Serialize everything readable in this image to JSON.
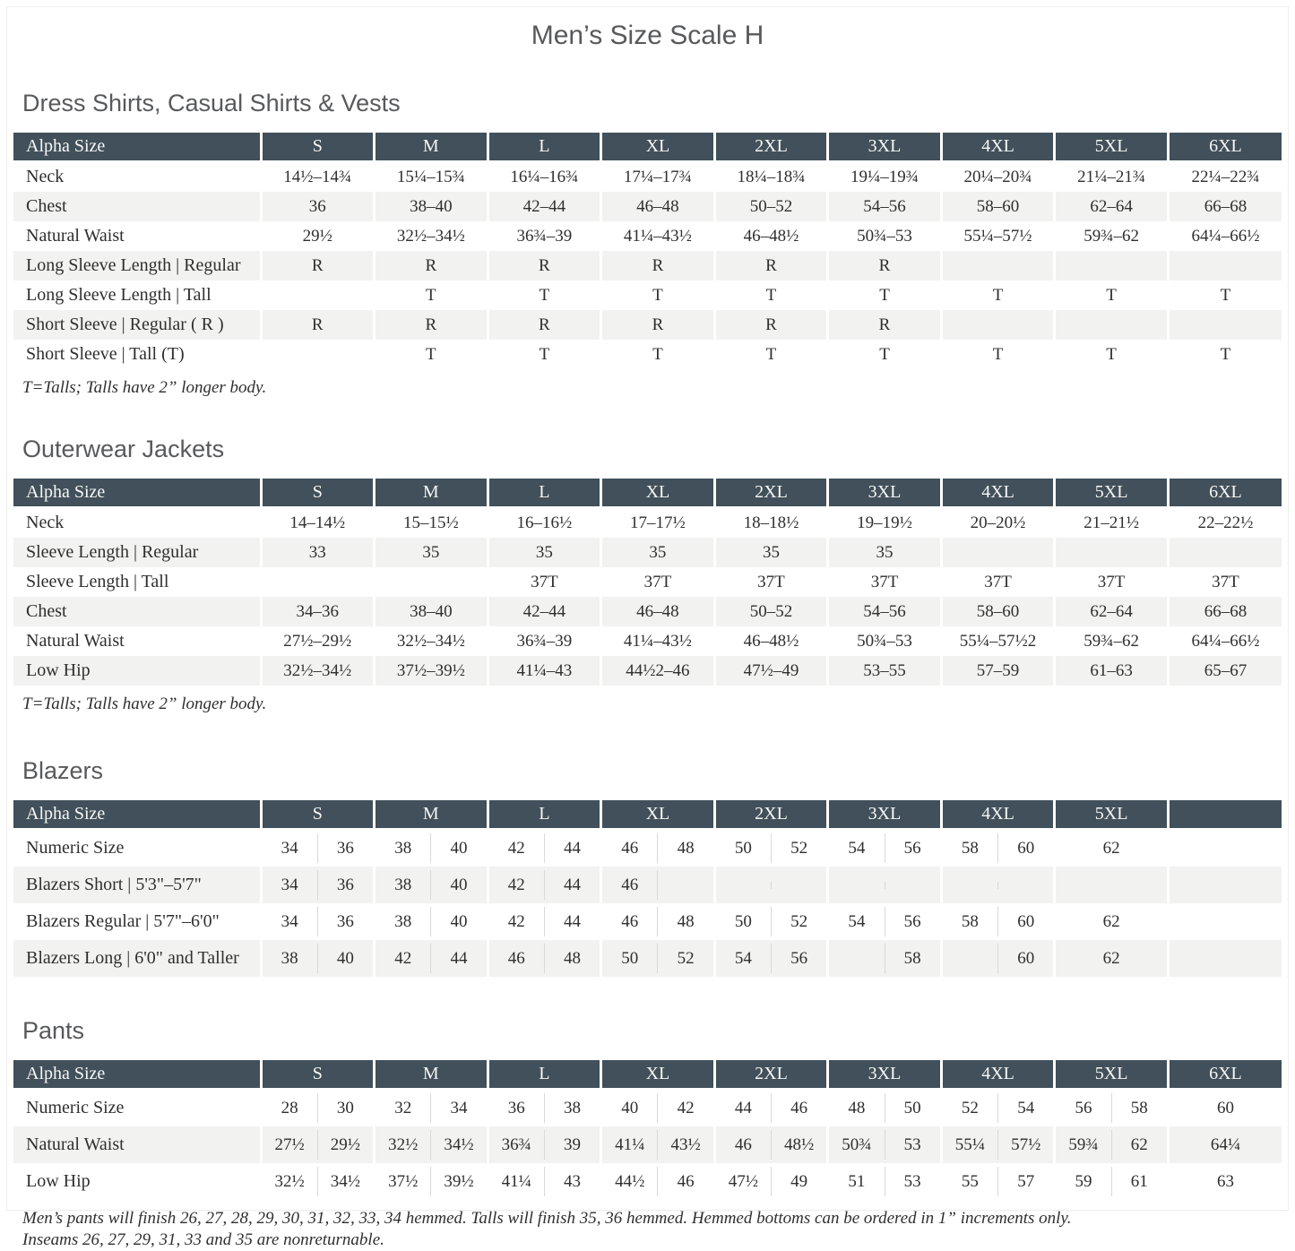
{
  "title": "Men’s Size Scale H",
  "colors": {
    "header_bg": "#41505a",
    "header_text": "#f7f7f5",
    "stripe": "#f2f2f0",
    "body_text": "#2f2f2f",
    "heading_text": "#58595b",
    "divider": "#d9d9d7"
  },
  "sections": [
    {
      "heading": "Dress Shirts, Casual Shirts & Vests",
      "footnotes": [
        "T=Talls; Talls have 2” longer body."
      ],
      "table": {
        "split": false,
        "columns": [
          "Alpha Size",
          "S",
          "M",
          "L",
          "XL",
          "2XL",
          "3XL",
          "4XL",
          "5XL",
          "6XL"
        ],
        "rows": [
          {
            "label": "Neck",
            "cells": [
              "14½–14¾",
              "15¼–15¾",
              "16¼–16¾",
              "17¼–17¾",
              "18¼–18¾",
              "19¼–19¾",
              "20¼–20¾",
              "21¼–21¾",
              "22¼–22¾"
            ]
          },
          {
            "label": "Chest",
            "cells": [
              "36",
              "38–40",
              "42–44",
              "46–48",
              "50–52",
              "54–56",
              "58–60",
              "62–64",
              "66–68"
            ]
          },
          {
            "label": "Natural Waist",
            "cells": [
              "29½",
              "32½–34½",
              "36¾–39",
              "41¼–43½",
              "46–48½",
              "50¾–53",
              "55¼–57½",
              "59¾–62",
              "64¼–66½"
            ]
          },
          {
            "label": "Long Sleeve Length  |  Regular",
            "cells": [
              "R",
              "R",
              "R",
              "R",
              "R",
              "R",
              "",
              "",
              ""
            ]
          },
          {
            "label": "Long Sleeve Length  |  Tall",
            "cells": [
              "",
              "T",
              "T",
              "T",
              "T",
              "T",
              "T",
              "T",
              "T"
            ]
          },
          {
            "label": "Short Sleeve  |  Regular ( R )",
            "cells": [
              "R",
              "R",
              "R",
              "R",
              "R",
              "R",
              "",
              "",
              ""
            ]
          },
          {
            "label": "Short Sleeve  |  Tall (T)",
            "cells": [
              "",
              "T",
              "T",
              "T",
              "T",
              "T",
              "T",
              "T",
              "T"
            ]
          }
        ]
      }
    },
    {
      "heading": "Outerwear Jackets",
      "footnotes": [
        "T=Talls; Talls have 2” longer body."
      ],
      "table": {
        "split": false,
        "columns": [
          "Alpha Size",
          "S",
          "M",
          "L",
          "XL",
          "2XL",
          "3XL",
          "4XL",
          "5XL",
          "6XL"
        ],
        "rows": [
          {
            "label": "Neck",
            "cells": [
              "14–14½",
              "15–15½",
              "16–16½",
              "17–17½",
              "18–18½",
              "19–19½",
              "20–20½",
              "21–21½",
              "22–22½"
            ]
          },
          {
            "label": "Sleeve Length  |  Regular",
            "cells": [
              "33",
              "35",
              "35",
              "35",
              "35",
              "35",
              "",
              "",
              ""
            ]
          },
          {
            "label": "Sleeve Length  |  Tall",
            "cells": [
              "",
              "",
              "37T",
              "37T",
              "37T",
              "37T",
              "37T",
              "37T",
              "37T"
            ]
          },
          {
            "label": "Chest",
            "cells": [
              "34–36",
              "38–40",
              "42–44",
              "46–48",
              "50–52",
              "54–56",
              "58–60",
              "62–64",
              "66–68"
            ]
          },
          {
            "label": "Natural Waist",
            "cells": [
              "27½–29½",
              "32½–34½",
              "36¾–39",
              "41¼–43½",
              "46–48½",
              "50¾–53",
              "55¼–57½2",
              "59¾–62",
              "64¼–66½"
            ]
          },
          {
            "label": "Low Hip",
            "cells": [
              "32½–34½",
              "37½–39½",
              "41¼–43",
              "44½2–46",
              "47½–49",
              "53–55",
              "57–59",
              "61–63",
              "65–67"
            ]
          }
        ]
      }
    },
    {
      "heading": "Blazers",
      "footnotes": [],
      "table": {
        "split": true,
        "columns": [
          "Alpha Size",
          "S",
          "M",
          "L",
          "XL",
          "2XL",
          "3XL",
          "4XL",
          "5XL",
          ""
        ],
        "rows": [
          {
            "label": "Numeric Size",
            "cells": [
              [
                "34",
                "36"
              ],
              [
                "38",
                "40"
              ],
              [
                "42",
                "44"
              ],
              [
                "46",
                "48"
              ],
              [
                "50",
                "52"
              ],
              [
                "54",
                "56"
              ],
              [
                "58",
                "60"
              ],
              [
                "62"
              ],
              null
            ]
          },
          {
            "label": "Blazers Short  |  5'3\"–5'7\"",
            "cells": [
              [
                "34",
                "36"
              ],
              [
                "38",
                "40"
              ],
              [
                "42",
                "44"
              ],
              [
                "46",
                ""
              ],
              null,
              null,
              null,
              null,
              null
            ]
          },
          {
            "label": "Blazers Regular  |  5'7\"–6'0\"",
            "cells": [
              [
                "34",
                "36"
              ],
              [
                "38",
                "40"
              ],
              [
                "42",
                "44"
              ],
              [
                "46",
                "48"
              ],
              [
                "50",
                "52"
              ],
              [
                "54",
                "56"
              ],
              [
                "58",
                "60"
              ],
              [
                "62"
              ],
              null
            ]
          },
          {
            "label": "Blazers Long  |  6'0\" and Taller",
            "cells": [
              [
                "38",
                "40"
              ],
              [
                "42",
                "44"
              ],
              [
                "46",
                "48"
              ],
              [
                "50",
                "52"
              ],
              [
                "54",
                "56"
              ],
              [
                "",
                "58"
              ],
              [
                "",
                "60"
              ],
              [
                "62"
              ],
              null
            ]
          }
        ]
      }
    },
    {
      "heading": "Pants",
      "footnotes": [
        "Men’s pants will finish 26, 27, 28, 29, 30, 31, 32, 33, 34 hemmed. Talls will finish 35, 36 hemmed. Hemmed bottoms can be ordered in 1” increments only.",
        "Inseams 26, 27, 29, 31, 33 and 35 are nonreturnable."
      ],
      "table": {
        "split": true,
        "columns": [
          "Alpha Size",
          "S",
          "M",
          "L",
          "XL",
          "2XL",
          "3XL",
          "4XL",
          "5XL",
          "6XL"
        ],
        "rows": [
          {
            "label": "Numeric Size",
            "cells": [
              [
                "28",
                "30"
              ],
              [
                "32",
                "34"
              ],
              [
                "36",
                "38"
              ],
              [
                "40",
                "42"
              ],
              [
                "44",
                "46"
              ],
              [
                "48",
                "50"
              ],
              [
                "52",
                "54"
              ],
              [
                "56",
                "58"
              ],
              [
                "60"
              ]
            ]
          },
          {
            "label": "Natural Waist",
            "cells": [
              [
                "27½",
                "29½"
              ],
              [
                "32½",
                "34½"
              ],
              [
                "36¾",
                "39"
              ],
              [
                "41¼",
                "43½"
              ],
              [
                "46",
                "48½"
              ],
              [
                "50¾",
                "53"
              ],
              [
                "55¼",
                "57½"
              ],
              [
                "59¾",
                "62"
              ],
              [
                "64¼"
              ]
            ]
          },
          {
            "label": "Low Hip",
            "cells": [
              [
                "32½",
                "34½"
              ],
              [
                "37½",
                "39½"
              ],
              [
                "41¼",
                "43"
              ],
              [
                "44½",
                "46"
              ],
              [
                "47½",
                "49"
              ],
              [
                "51",
                "53"
              ],
              [
                "55",
                "57"
              ],
              [
                "59",
                "61"
              ],
              [
                "63"
              ]
            ]
          }
        ]
      }
    }
  ]
}
